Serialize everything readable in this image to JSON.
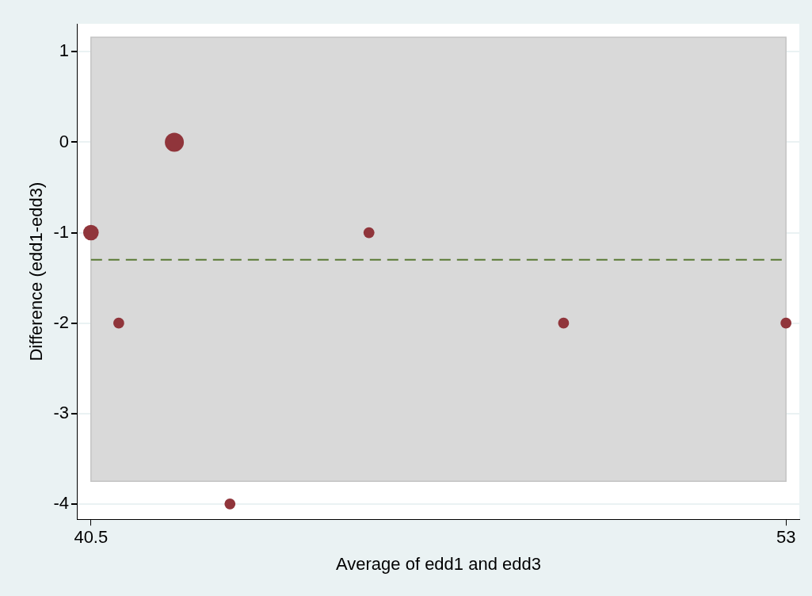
{
  "chart_data": {
    "type": "bubble",
    "xlabel": "Average of edd1 and edd3",
    "ylabel": "Difference (edd1-edd3)",
    "x": [
      40.5,
      41,
      42,
      43,
      45.5,
      49,
      53
    ],
    "series": [
      {
        "color": "#90353b",
        "values": [
          -1,
          -2,
          0,
          -4,
          -1,
          -2,
          -2
        ],
        "sizes": [
          0.67,
          0.33,
          1,
          0.33,
          0.33,
          0.33,
          0.33
        ]
      }
    ],
    "xlim": [
      40.26,
      53.24
    ],
    "xticks": [
      40.5,
      53
    ],
    "ylim": [
      -4.17,
      1.31
    ],
    "yticks": [
      -4,
      -3,
      -2,
      -1,
      0,
      1
    ],
    "ref_lines": [
      {
        "axis": "y",
        "value": -1.3,
        "color": "#5a7a34",
        "line_style": "dashed"
      }
    ],
    "bands": [
      {
        "axis": "y",
        "from": -3.75,
        "to": 1.16,
        "color": "#d9d9d9"
      }
    ],
    "grid": "y",
    "legend": false
  }
}
